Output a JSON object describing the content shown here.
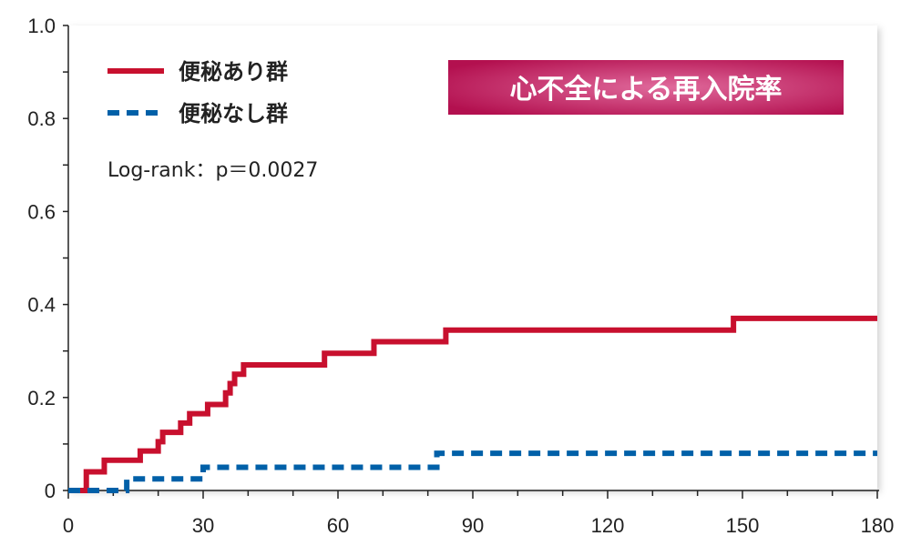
{
  "chart_data": {
    "type": "line",
    "step": true,
    "title": "心不全による再入院率",
    "annotation": "Log-rank：p＝0.0027",
    "xlim": [
      0,
      180
    ],
    "ylim": [
      0,
      1.0
    ],
    "x_ticks": [
      0,
      30,
      60,
      90,
      120,
      150,
      180
    ],
    "x_tick_labels": [
      "0",
      "30",
      "60",
      "90",
      "120",
      "150",
      "180"
    ],
    "y_ticks": [
      0,
      0.2,
      0.4,
      0.6,
      0.8,
      1.0
    ],
    "y_tick_labels": [
      "0",
      "0.2",
      "0.4",
      "0.6",
      "0.8",
      "1.0"
    ],
    "grid": false,
    "legend_position": "top-left",
    "series": [
      {
        "name": "便秘あり群",
        "color": "#c8102e",
        "style": "solid",
        "x": [
          0,
          4,
          8,
          16,
          20,
          21,
          25,
          27,
          31,
          35,
          36,
          37,
          39,
          57,
          68,
          84,
          148,
          180
        ],
        "y": [
          0,
          0.04,
          0.065,
          0.085,
          0.105,
          0.125,
          0.145,
          0.165,
          0.185,
          0.21,
          0.23,
          0.25,
          0.27,
          0.295,
          0.32,
          0.345,
          0.37,
          0.37
        ]
      },
      {
        "name": "便秘なし群",
        "color": "#0060a8",
        "style": "dashed",
        "x": [
          0,
          13,
          30,
          82,
          180
        ],
        "y": [
          0,
          0.025,
          0.05,
          0.08,
          0.08
        ]
      }
    ]
  }
}
